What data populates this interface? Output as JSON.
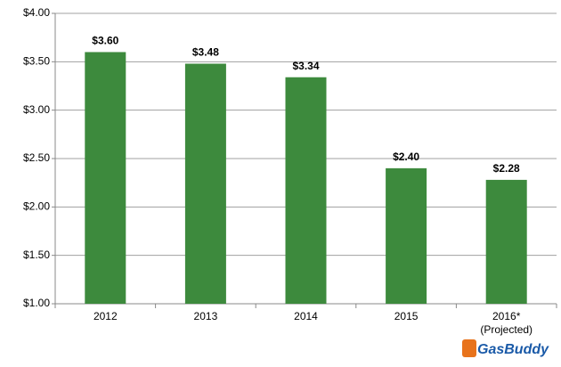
{
  "chart_data": {
    "type": "bar",
    "categories": [
      "2012",
      "2013",
      "2014",
      "2015",
      "2016*"
    ],
    "category_note": "(Projected)",
    "values": [
      3.6,
      3.48,
      3.34,
      2.4,
      2.28
    ],
    "value_labels": [
      "$3.60",
      "$3.48",
      "$3.34",
      "$2.40",
      "$2.28"
    ],
    "color": "#3d8a3d",
    "ylim": [
      1,
      4
    ],
    "yticks": [
      {
        "value": 1,
        "label": "$1.00"
      },
      {
        "value": 1.5,
        "label": "$1.50"
      },
      {
        "value": 2,
        "label": "$2.00"
      },
      {
        "value": 2.5,
        "label": "$2.50"
      },
      {
        "value": 3,
        "label": "$3.00"
      },
      {
        "value": 3.5,
        "label": "$3.50"
      },
      {
        "value": 4,
        "label": "$4.00"
      }
    ],
    "grid": true,
    "logo": "GasBuddy"
  }
}
